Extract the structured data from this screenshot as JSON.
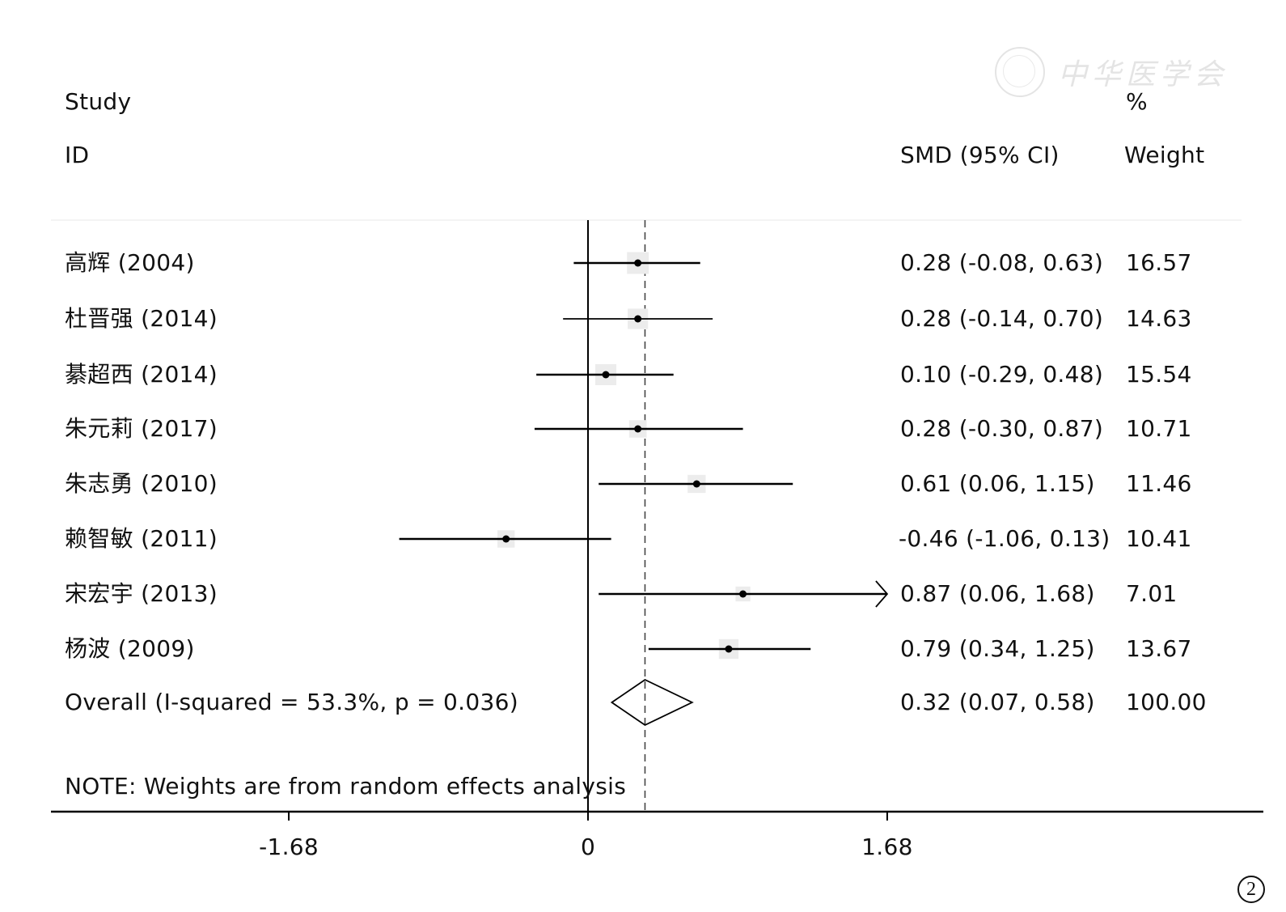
{
  "watermark": {
    "text": "中华医学会",
    "seal": "chinese-medical-association-seal"
  },
  "figure_number": "2",
  "chart_data": {
    "type": "forest",
    "columns": {
      "study_header_line1": "Study",
      "study_header_line2": "ID",
      "effect_header": "SMD (95% CI)",
      "weight_header_line1": "%",
      "weight_header_line2": "Weight"
    },
    "studies": [
      {
        "label": "高辉 (2004)",
        "smd": 0.28,
        "lower": -0.08,
        "upper": 0.63,
        "ci_text": "0.28 (-0.08, 0.63)",
        "weight": "16.57"
      },
      {
        "label": "杜晋强 (2014)",
        "smd": 0.28,
        "lower": -0.14,
        "upper": 0.7,
        "ci_text": "0.28 (-0.14, 0.70)",
        "weight": "14.63"
      },
      {
        "label": "綦超西 (2014)",
        "smd": 0.1,
        "lower": -0.29,
        "upper": 0.48,
        "ci_text": "0.10 (-0.29, 0.48)",
        "weight": "15.54"
      },
      {
        "label": "朱元莉 (2017)",
        "smd": 0.28,
        "lower": -0.3,
        "upper": 0.87,
        "ci_text": "0.28 (-0.30, 0.87)",
        "weight": "10.71"
      },
      {
        "label": "朱志勇 (2010)",
        "smd": 0.61,
        "lower": 0.06,
        "upper": 1.15,
        "ci_text": "0.61 (0.06, 1.15)",
        "weight": "11.46"
      },
      {
        "label": "赖智敏 (2011)",
        "smd": -0.46,
        "lower": -1.06,
        "upper": 0.13,
        "ci_text": "-0.46 (-1.06, 0.13)",
        "weight": "10.41"
      },
      {
        "label": "宋宏宇 (2013)",
        "smd": 0.87,
        "lower": 0.06,
        "upper": 1.68,
        "ci_text": "0.87 (0.06, 1.68)",
        "weight": "7.01"
      },
      {
        "label": "杨波 (2009)",
        "smd": 0.79,
        "lower": 0.34,
        "upper": 1.25,
        "ci_text": "0.79 (0.34, 1.25)",
        "weight": "13.67"
      }
    ],
    "overall": {
      "label": "Overall  (I-squared = 53.3%, p = 0.036)",
      "smd": 0.32,
      "lower": 0.07,
      "upper": 0.58,
      "ci_text": "0.32 (0.07, 0.58)",
      "weight": "100.00"
    },
    "note": "NOTE: Weights are from random effects analysis",
    "x_ticks": [
      -1.68,
      0,
      1.68
    ],
    "x_tick_labels": [
      "-1.68",
      "0",
      "1.68"
    ],
    "xlim": [
      -3.03,
      3.78
    ],
    "null_line": 0,
    "pooled_line": 0.32,
    "arrow_clip": 1.68
  }
}
